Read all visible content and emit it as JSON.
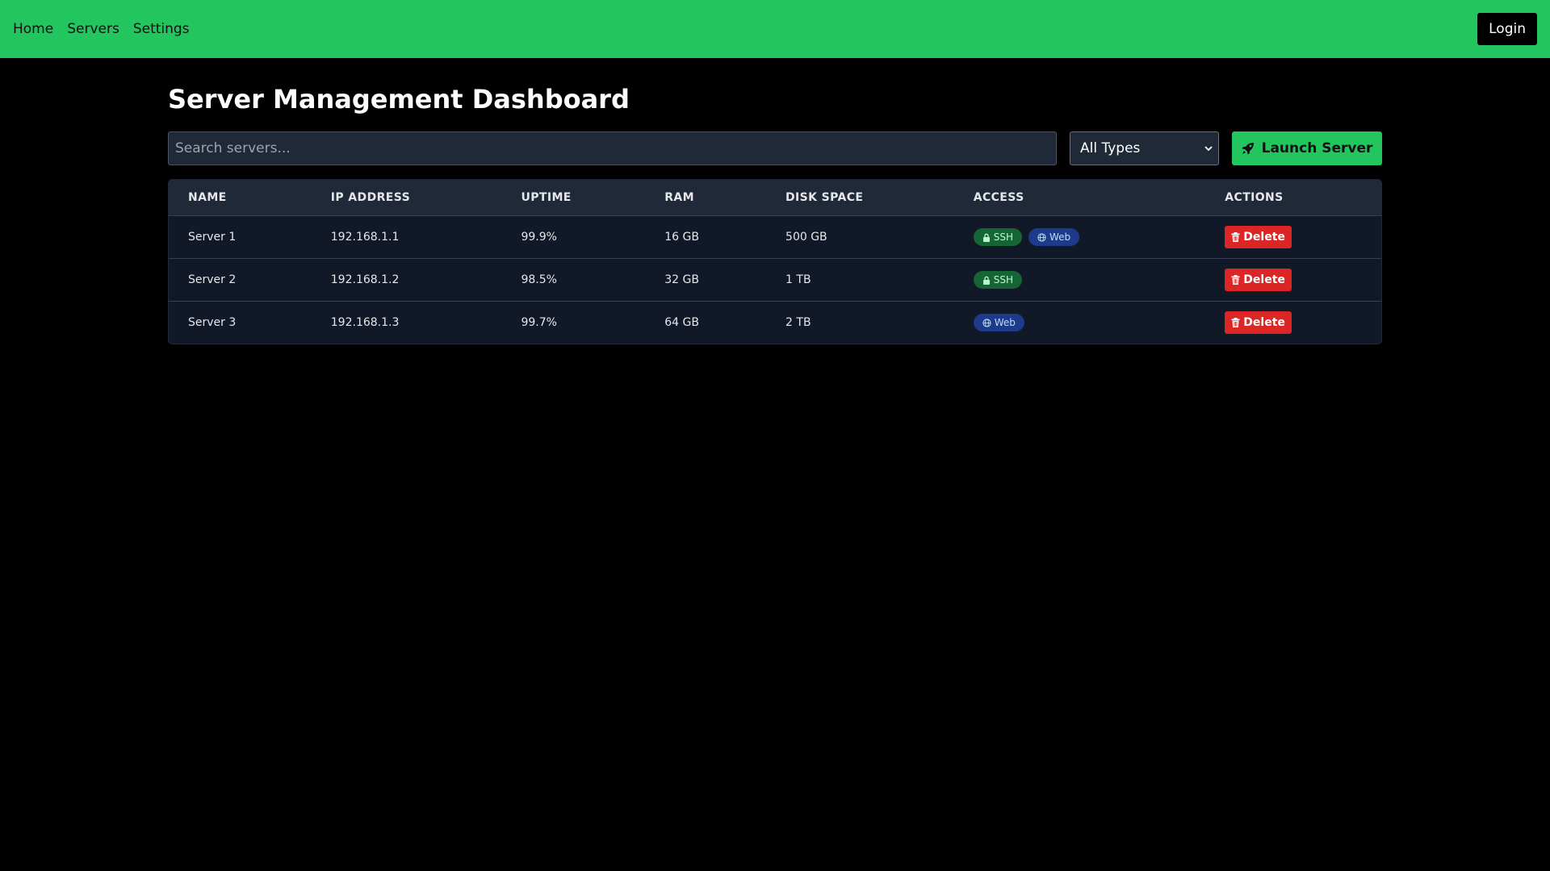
{
  "nav": {
    "items": [
      "Home",
      "Servers",
      "Settings"
    ],
    "login_label": "Login"
  },
  "page": {
    "title": "Server Management Dashboard"
  },
  "controls": {
    "search_placeholder": "Search servers...",
    "type_filter": "All Types",
    "launch_label": "Launch Server"
  },
  "table": {
    "headers": [
      "NAME",
      "IP ADDRESS",
      "UPTIME",
      "RAM",
      "DISK SPACE",
      "ACCESS",
      "ACTIONS"
    ],
    "rows": [
      {
        "name": "Server 1",
        "ip": "192.168.1.1",
        "uptime": "99.9%",
        "ram": "16 GB",
        "disk": "500 GB",
        "ssh": "SSH",
        "web": "Web",
        "action": "Delete"
      },
      {
        "name": "Server 2",
        "ip": "192.168.1.2",
        "uptime": "98.5%",
        "ram": "32 GB",
        "disk": "1 TB",
        "ssh": "SSH",
        "action": "Delete"
      },
      {
        "name": "Server 3",
        "ip": "192.168.1.3",
        "uptime": "99.7%",
        "ram": "64 GB",
        "disk": "2 TB",
        "web": "Web",
        "action": "Delete"
      }
    ]
  },
  "colors": {
    "accent": "#22c55e",
    "danger": "#dc2626",
    "ssh_badge": "#166534",
    "web_badge": "#1e3a8a"
  },
  "icons": {
    "launch": "rocket-icon",
    "ssh": "lock-icon",
    "web": "globe-icon",
    "delete": "trash-icon"
  }
}
